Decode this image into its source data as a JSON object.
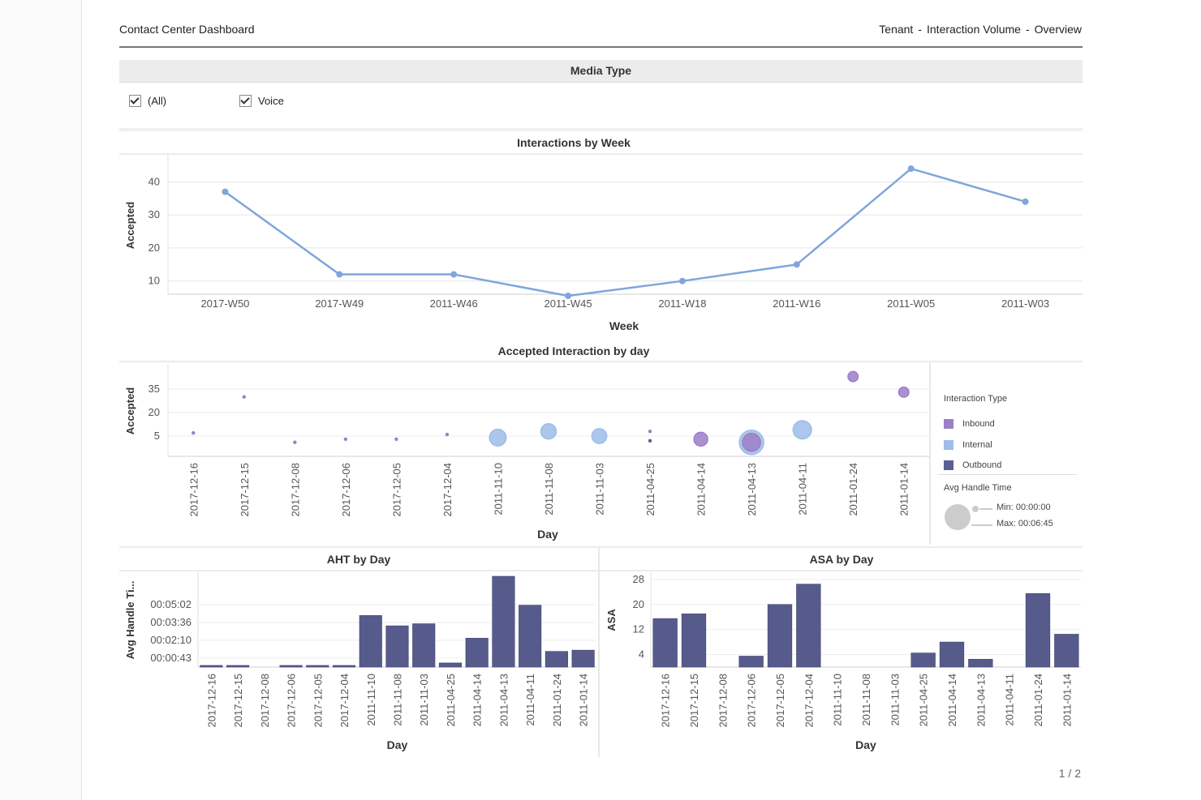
{
  "header": {
    "title": "Contact Center Dashboard",
    "crumbs": [
      "Tenant",
      "Interaction Volume",
      "Overview"
    ],
    "separator": "-"
  },
  "filter": {
    "title": "Media Type",
    "options": [
      {
        "label": "(All)",
        "checked": true
      },
      {
        "label": "Voice",
        "checked": true
      }
    ]
  },
  "colors": {
    "line": "#7ea6dc",
    "inbound": "#9b7fc8",
    "internal": "#9dbde8",
    "outbound": "#5a5f94",
    "bar": "#575b8c",
    "grid": "#e6e6e6",
    "size_legend": "#cccccc"
  },
  "legend": {
    "title": "Interaction Type",
    "items": [
      {
        "label": "Inbound",
        "color": "#9b7fc8"
      },
      {
        "label": "Internal",
        "color": "#9dbde8"
      },
      {
        "label": "Outbound",
        "color": "#5a5f94"
      }
    ],
    "size_title": "Avg Handle Time",
    "size_min": "Min: 00:00:00",
    "size_max": "Max: 00:06:45"
  },
  "page_number": "1 / 2",
  "chart_data": [
    {
      "type": "line",
      "title": "Interactions by Week",
      "xlabel": "Week",
      "ylabel": "Accepted",
      "categories": [
        "2017-W50",
        "2017-W49",
        "2011-W46",
        "2011-W45",
        "2011-W18",
        "2011-W16",
        "2011-W05",
        "2011-W03"
      ],
      "values": [
        37,
        12,
        12,
        5.5,
        10,
        15,
        44,
        34
      ],
      "ylim": [
        6,
        45
      ],
      "yticks": [
        10,
        20,
        30,
        40
      ],
      "grid": true
    },
    {
      "type": "scatter",
      "title": "Accepted Interaction by day",
      "xlabel": "Day",
      "ylabel": "Accepted",
      "categories": [
        "2017-12-16",
        "2017-12-15",
        "2017-12-08",
        "2017-12-06",
        "2017-12-05",
        "2017-12-04",
        "2011-11-10",
        "2011-11-08",
        "2011-11-03",
        "2011-04-25",
        "2011-04-14",
        "2011-04-13",
        "2011-04-11",
        "2011-01-24",
        "2011-01-14"
      ],
      "yticks": [
        5,
        20,
        35
      ],
      "points": [
        {
          "day": "2017-12-16",
          "type": "Inbound",
          "value": 7,
          "aht": "00:00:00"
        },
        {
          "day": "2017-12-15",
          "type": "Inbound",
          "value": 30,
          "aht": "00:00:00"
        },
        {
          "day": "2017-12-08",
          "type": "Inbound",
          "value": 1,
          "aht": "00:00:00"
        },
        {
          "day": "2017-12-06",
          "type": "Inbound",
          "value": 3,
          "aht": "00:00:00"
        },
        {
          "day": "2017-12-05",
          "type": "Inbound",
          "value": 3,
          "aht": "00:00:00"
        },
        {
          "day": "2017-12-04",
          "type": "Inbound",
          "value": 6,
          "aht": "00:00:00"
        },
        {
          "day": "2011-11-10",
          "type": "Internal",
          "value": 4,
          "aht": "00:03:10"
        },
        {
          "day": "2011-11-08",
          "type": "Internal",
          "value": 8,
          "aht": "00:02:40"
        },
        {
          "day": "2011-11-03",
          "type": "Internal",
          "value": 5,
          "aht": "00:02:30"
        },
        {
          "day": "2011-04-25",
          "type": "Inbound",
          "value": 8,
          "aht": "00:00:00"
        },
        {
          "day": "2011-04-25",
          "type": "Outbound",
          "value": 2,
          "aht": "00:00:00"
        },
        {
          "day": "2011-04-14",
          "type": "Inbound",
          "value": 3,
          "aht": "00:02:10"
        },
        {
          "day": "2011-04-13",
          "type": "Internal",
          "value": 1,
          "aht": "00:06:45"
        },
        {
          "day": "2011-04-13",
          "type": "Inbound",
          "value": 1,
          "aht": "00:03:40"
        },
        {
          "day": "2011-04-11",
          "type": "Internal",
          "value": 9,
          "aht": "00:03:50"
        },
        {
          "day": "2011-01-24",
          "type": "Inbound",
          "value": 43,
          "aht": "00:01:10"
        },
        {
          "day": "2011-01-14",
          "type": "Inbound",
          "value": 33,
          "aht": "00:01:10"
        }
      ],
      "aht_range": [
        "00:00:00",
        "00:06:45"
      ]
    },
    {
      "type": "bar",
      "title": "AHT by Day",
      "xlabel": "Day",
      "ylabel": "Avg Handle Ti...",
      "categories": [
        "2017-12-16",
        "2017-12-15",
        "2017-12-08",
        "2017-12-06",
        "2017-12-05",
        "2017-12-04",
        "2011-11-10",
        "2011-11-08",
        "2011-11-03",
        "2011-04-25",
        "2011-04-14",
        "2011-04-13",
        "2011-04-11",
        "2011-01-24",
        "2011-01-14"
      ],
      "values_seconds": [
        8,
        8,
        0,
        8,
        8,
        8,
        250,
        200,
        210,
        20,
        140,
        440,
        300,
        76,
        82
      ],
      "yticks": [
        {
          "label": "00:00:43",
          "seconds": 43
        },
        {
          "label": "00:02:10",
          "seconds": 130
        },
        {
          "label": "00:03:36",
          "seconds": 216
        },
        {
          "label": "00:05:02",
          "seconds": 302
        }
      ],
      "ylim": [
        0,
        440
      ]
    },
    {
      "type": "bar",
      "title": "ASA by Day",
      "xlabel": "Day",
      "ylabel": "ASA",
      "categories": [
        "2017-12-16",
        "2017-12-15",
        "2017-12-08",
        "2017-12-06",
        "2017-12-05",
        "2017-12-04",
        "2011-11-10",
        "2011-11-08",
        "2011-11-03",
        "2011-04-25",
        "2011-04-14",
        "2011-04-13",
        "2011-04-11",
        "2011-01-24",
        "2011-01-14"
      ],
      "values": [
        15.5,
        17,
        0,
        3.5,
        20,
        26.5,
        0,
        0,
        0,
        4.5,
        8,
        2.5,
        0,
        23.5,
        10.5
      ],
      "yticks": [
        4,
        12,
        20,
        28
      ],
      "ylim": [
        0,
        29
      ]
    }
  ]
}
